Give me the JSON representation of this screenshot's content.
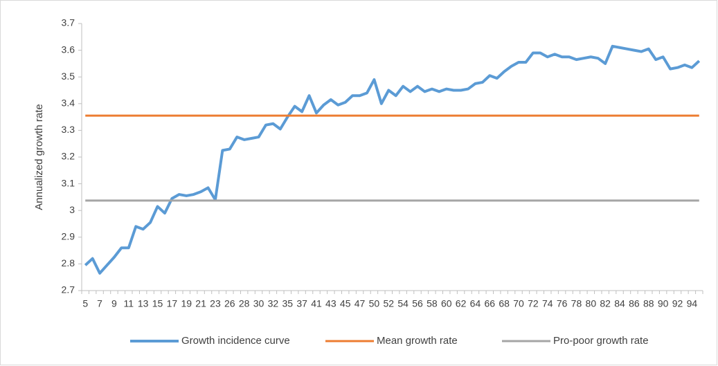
{
  "chart_data": {
    "type": "line",
    "y_label": "Annualized growth rate",
    "categories": [
      "5",
      null,
      "7",
      null,
      "9",
      null,
      "11",
      null,
      "13",
      null,
      "15",
      null,
      "17",
      null,
      "19",
      null,
      "21",
      null,
      "23",
      null,
      "26",
      null,
      "28",
      null,
      "30",
      null,
      "32",
      null,
      "35",
      null,
      "37",
      null,
      "41",
      null,
      "43",
      null,
      "45",
      null,
      "47",
      null,
      "50",
      null,
      "52",
      null,
      "54",
      null,
      "56",
      null,
      "58",
      null,
      "60",
      null,
      "62",
      null,
      "64",
      null,
      "66",
      null,
      "68",
      null,
      "70",
      null,
      "72",
      null,
      "74",
      null,
      "76",
      null,
      "78",
      null,
      "80",
      null,
      "82",
      null,
      "84",
      null,
      "86",
      null,
      "88",
      null,
      "90",
      null,
      "92",
      null,
      "94",
      null
    ],
    "series": [
      {
        "name": "Growth incidence curve",
        "color": "#5b9bd5",
        "width": 4,
        "values": [
          2.795,
          2.82,
          2.765,
          2.795,
          2.825,
          2.86,
          2.86,
          2.94,
          2.93,
          2.955,
          3.015,
          2.99,
          3.045,
          3.06,
          3.055,
          3.06,
          3.07,
          3.085,
          3.04,
          3.225,
          3.23,
          3.275,
          3.265,
          3.27,
          3.275,
          3.32,
          3.325,
          3.305,
          3.35,
          3.39,
          3.37,
          3.43,
          3.365,
          3.395,
          3.415,
          3.395,
          3.405,
          3.43,
          3.43,
          3.44,
          3.49,
          3.4,
          3.45,
          3.43,
          3.465,
          3.445,
          3.465,
          3.445,
          3.455,
          3.445,
          3.455,
          3.45,
          3.45,
          3.455,
          3.475,
          3.48,
          3.505,
          3.495,
          3.52,
          3.54,
          3.555,
          3.555,
          3.59,
          3.59,
          3.575,
          3.585,
          3.575,
          3.575,
          3.565,
          3.57,
          3.575,
          3.57,
          3.55,
          3.615,
          3.61,
          3.605,
          3.6,
          3.595,
          3.605,
          3.565,
          3.575,
          3.53,
          3.535,
          3.545,
          3.535,
          3.56
        ]
      },
      {
        "name": "Mean growth rate",
        "color": "#ed7d31",
        "width": 3,
        "values": [
          3.355,
          3.355,
          3.355,
          3.355,
          3.355,
          3.355,
          3.355,
          3.355,
          3.355,
          3.355,
          3.355,
          3.355,
          3.355,
          3.355,
          3.355,
          3.355,
          3.355,
          3.355,
          3.355,
          3.355,
          3.355,
          3.355,
          3.355,
          3.355,
          3.355,
          3.355,
          3.355,
          3.355,
          3.355,
          3.355,
          3.355,
          3.355,
          3.355,
          3.355,
          3.355,
          3.355,
          3.355,
          3.355,
          3.355,
          3.355,
          3.355,
          3.355,
          3.355,
          3.355,
          3.355,
          3.355,
          3.355,
          3.355,
          3.355,
          3.355,
          3.355,
          3.355,
          3.355,
          3.355,
          3.355,
          3.355,
          3.355,
          3.355,
          3.355,
          3.355,
          3.355,
          3.355,
          3.355,
          3.355,
          3.355,
          3.355,
          3.355,
          3.355,
          3.355,
          3.355,
          3.355,
          3.355,
          3.355,
          3.355,
          3.355,
          3.355,
          3.355,
          3.355,
          3.355,
          3.355,
          3.355,
          3.355,
          3.355,
          3.355,
          3.355,
          3.355
        ]
      },
      {
        "name": "Pro-poor growth rate",
        "color": "#a5a5a5",
        "width": 3,
        "values": [
          3.037,
          3.037,
          3.037,
          3.037,
          3.037,
          3.037,
          3.037,
          3.037,
          3.037,
          3.037,
          3.037,
          3.037,
          3.037,
          3.037,
          3.037,
          3.037,
          3.037,
          3.037,
          3.037,
          3.037,
          3.037,
          3.037,
          3.037,
          3.037,
          3.037,
          3.037,
          3.037,
          3.037,
          3.037,
          3.037,
          3.037,
          3.037,
          3.037,
          3.037,
          3.037,
          3.037,
          3.037,
          3.037,
          3.037,
          3.037,
          3.037,
          3.037,
          3.037,
          3.037,
          3.037,
          3.037,
          3.037,
          3.037,
          3.037,
          3.037,
          3.037,
          3.037,
          3.037,
          3.037,
          3.037,
          3.037,
          3.037,
          3.037,
          3.037,
          3.037,
          3.037,
          3.037,
          3.037,
          3.037,
          3.037,
          3.037,
          3.037,
          3.037,
          3.037,
          3.037,
          3.037,
          3.037,
          3.037,
          3.037,
          3.037,
          3.037,
          3.037,
          3.037,
          3.037,
          3.037,
          3.037,
          3.037,
          3.037,
          3.037,
          3.037,
          3.037
        ]
      }
    ],
    "ylim": [
      2.7,
      3.7
    ],
    "yticks": [
      2.7,
      2.8,
      2.9,
      3,
      3.1,
      3.2,
      3.3,
      3.4,
      3.5,
      3.6,
      3.7
    ],
    "grid": false,
    "legend": "bottom"
  }
}
